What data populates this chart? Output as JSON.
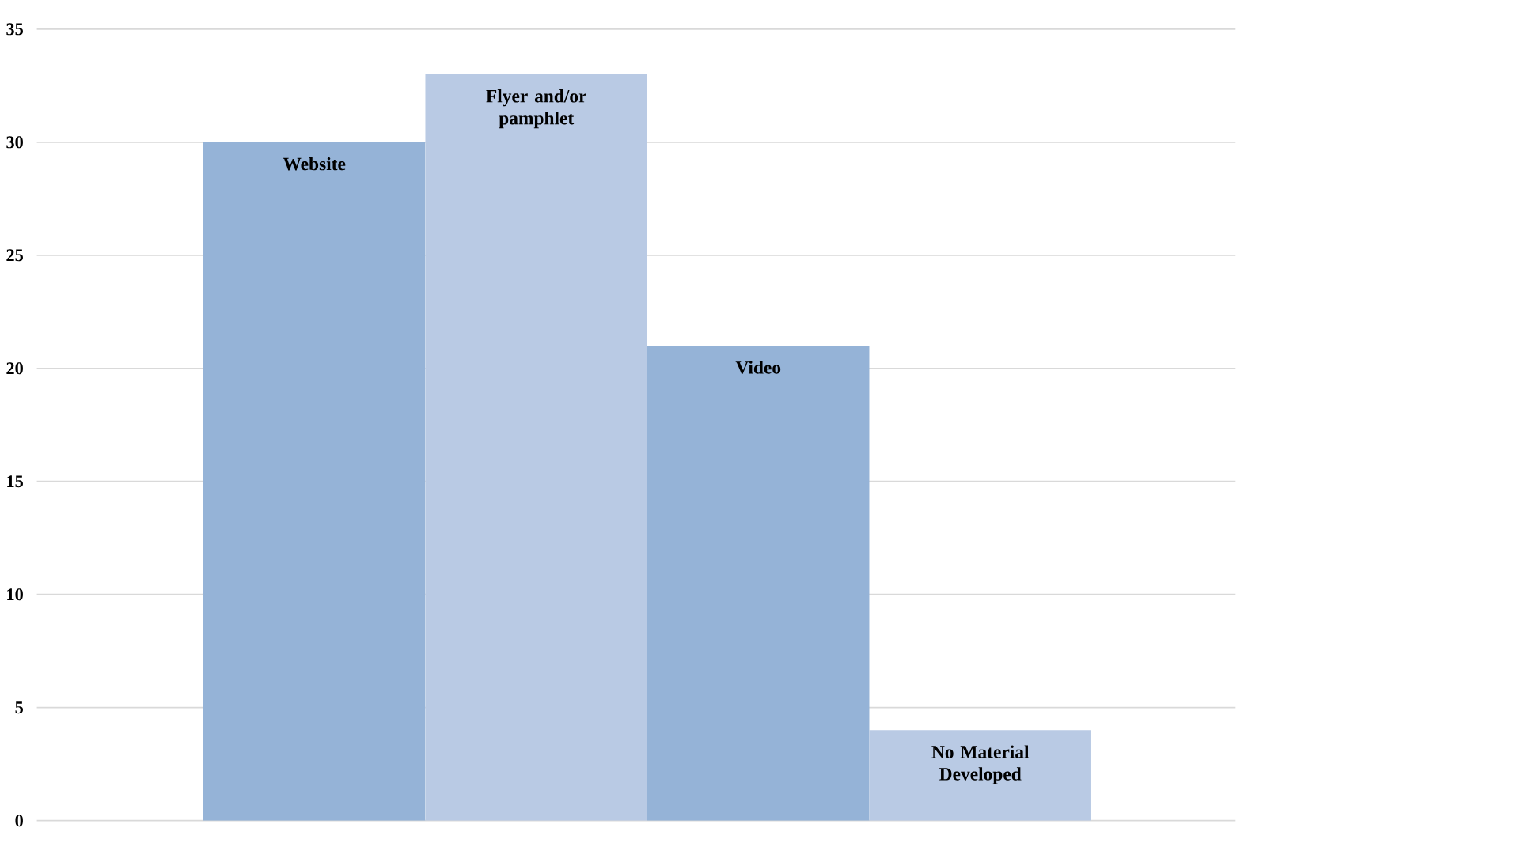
{
  "chart_data": {
    "type": "bar",
    "categories": [
      "Website",
      "Flyer and/or pamphlet",
      "Video",
      "No Material Developed"
    ],
    "values": [
      30,
      33,
      21,
      4
    ],
    "colors": [
      "#95b3d7",
      "#b9cae4",
      "#95b3d7",
      "#b9cae4"
    ],
    "ylim": [
      0,
      35
    ],
    "yticks": [
      0,
      5,
      10,
      15,
      20,
      25,
      30,
      35
    ],
    "grid": "y",
    "tick_labels": "y"
  }
}
